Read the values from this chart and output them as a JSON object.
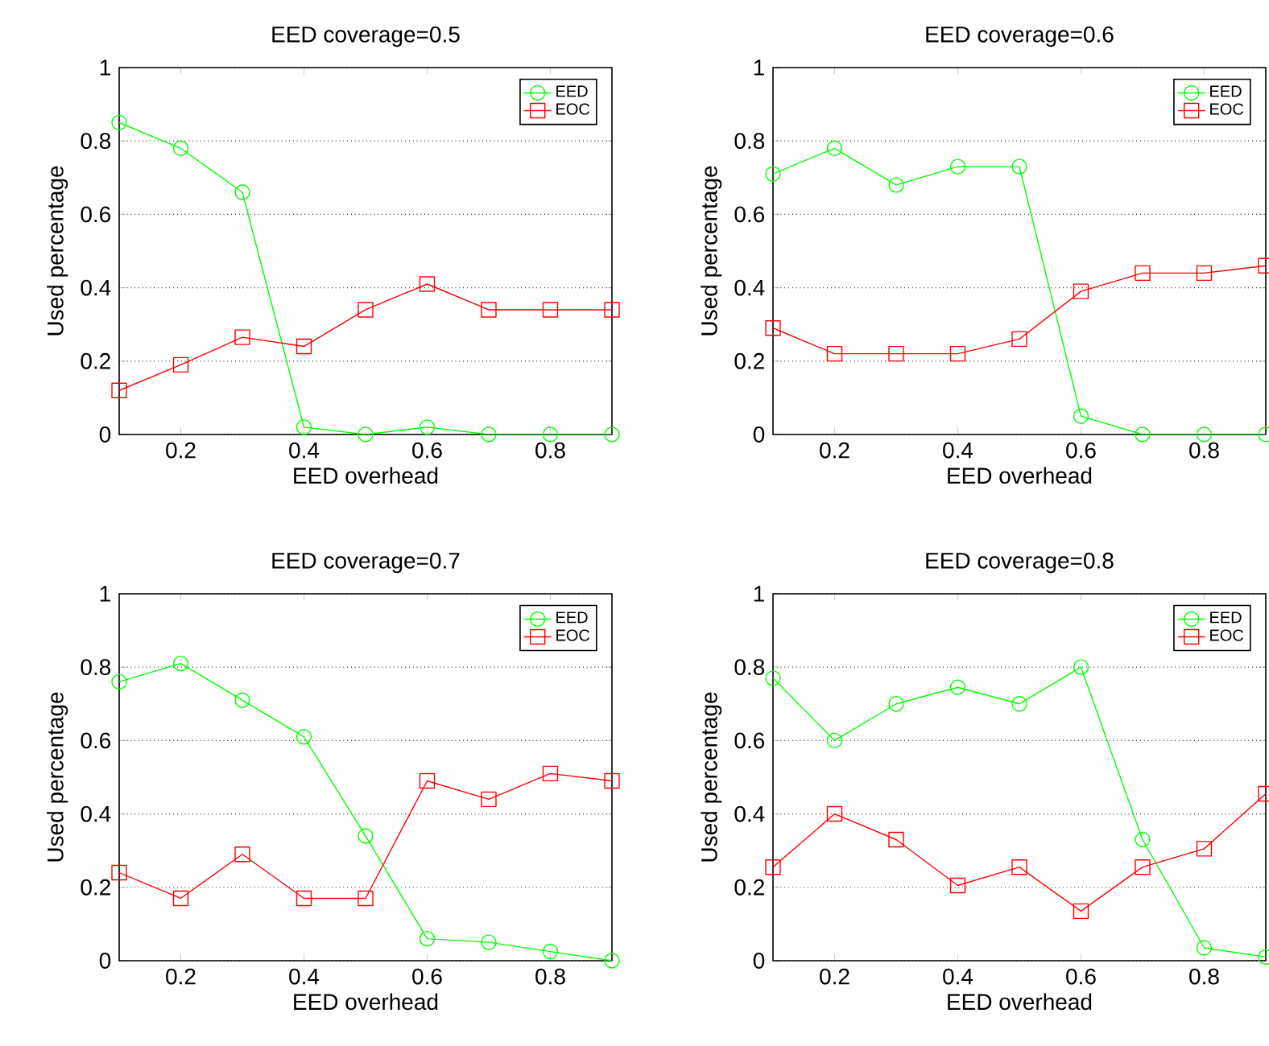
{
  "chart_data": [
    {
      "type": "line",
      "title": "EED coverage=0.5",
      "xlabel": "EED overhead",
      "ylabel": "Used percentage",
      "x": [
        0.1,
        0.2,
        0.3,
        0.4,
        0.5,
        0.6,
        0.7,
        0.8,
        0.9
      ],
      "xlim": [
        0.1,
        0.9
      ],
      "ylim": [
        0,
        1
      ],
      "xticks": [
        0.2,
        0.4,
        0.6,
        0.8
      ],
      "yticks": [
        0,
        0.2,
        0.4,
        0.6,
        0.8,
        1
      ],
      "grid": "y",
      "legend": "top right",
      "series": [
        {
          "name": "EED",
          "color": "#00ff00",
          "marker": "circle",
          "values": [
            0.85,
            0.78,
            0.66,
            0.02,
            0,
            0.02,
            0,
            0,
            0
          ]
        },
        {
          "name": "EOC",
          "color": "#ff0000",
          "marker": "square",
          "values": [
            0.12,
            0.19,
            0.265,
            0.24,
            0.34,
            0.41,
            0.34,
            0.34,
            0.34
          ]
        }
      ]
    },
    {
      "type": "line",
      "title": "EED coverage=0.6",
      "xlabel": "EED overhead",
      "ylabel": "Used percentage",
      "x": [
        0.1,
        0.2,
        0.3,
        0.4,
        0.5,
        0.6,
        0.7,
        0.8,
        0.9
      ],
      "xlim": [
        0.1,
        0.9
      ],
      "ylim": [
        0,
        1
      ],
      "xticks": [
        0.2,
        0.4,
        0.6,
        0.8
      ],
      "yticks": [
        0,
        0.2,
        0.4,
        0.6,
        0.8,
        1
      ],
      "grid": "y",
      "legend": "top right",
      "series": [
        {
          "name": "EED",
          "color": "#00ff00",
          "marker": "circle",
          "values": [
            0.71,
            0.78,
            0.68,
            0.73,
            0.73,
            0.05,
            0,
            0,
            0
          ]
        },
        {
          "name": "EOC",
          "color": "#ff0000",
          "marker": "square",
          "values": [
            0.29,
            0.22,
            0.22,
            0.22,
            0.26,
            0.39,
            0.44,
            0.44,
            0.46
          ]
        }
      ]
    },
    {
      "type": "line",
      "title": "EED coverage=0.7",
      "xlabel": "EED overhead",
      "ylabel": "Used percentage",
      "x": [
        0.1,
        0.2,
        0.3,
        0.4,
        0.5,
        0.6,
        0.7,
        0.8,
        0.9
      ],
      "xlim": [
        0.1,
        0.9
      ],
      "ylim": [
        0,
        1
      ],
      "xticks": [
        0.2,
        0.4,
        0.6,
        0.8
      ],
      "yticks": [
        0,
        0.2,
        0.4,
        0.6,
        0.8,
        1
      ],
      "grid": "y",
      "legend": "top right",
      "series": [
        {
          "name": "EED",
          "color": "#00ff00",
          "marker": "circle",
          "values": [
            0.76,
            0.81,
            0.71,
            0.61,
            0.34,
            0.06,
            0.05,
            0.025,
            0
          ]
        },
        {
          "name": "EOC",
          "color": "#ff0000",
          "marker": "square",
          "values": [
            0.24,
            0.17,
            0.29,
            0.17,
            0.17,
            0.49,
            0.44,
            0.51,
            0.49
          ]
        }
      ]
    },
    {
      "type": "line",
      "title": "EED coverage=0.8",
      "xlabel": "EED overhead",
      "ylabel": "Used percentage",
      "x": [
        0.1,
        0.2,
        0.3,
        0.4,
        0.5,
        0.6,
        0.7,
        0.8,
        0.9
      ],
      "xlim": [
        0.1,
        0.9
      ],
      "ylim": [
        0,
        1
      ],
      "xticks": [
        0.2,
        0.4,
        0.6,
        0.8
      ],
      "yticks": [
        0,
        0.2,
        0.4,
        0.6,
        0.8,
        1
      ],
      "grid": "y",
      "legend": "top right",
      "series": [
        {
          "name": "EED",
          "color": "#00ff00",
          "marker": "circle",
          "values": [
            0.77,
            0.6,
            0.7,
            0.745,
            0.7,
            0.8,
            0.33,
            0.035,
            0.01
          ]
        },
        {
          "name": "EOC",
          "color": "#ff0000",
          "marker": "square",
          "values": [
            0.255,
            0.4,
            0.33,
            0.205,
            0.255,
            0.135,
            0.255,
            0.305,
            0.455
          ]
        }
      ]
    }
  ]
}
